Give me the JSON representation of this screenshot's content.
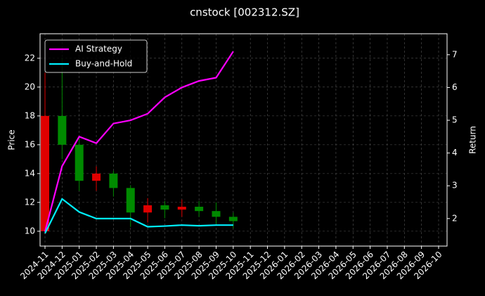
{
  "chart_data": {
    "type": "candlestick",
    "title": "cnstock [002312.SZ]",
    "ylabel": "Price",
    "y2label": "Return",
    "x": [
      "2024-11",
      "2024-12",
      "2025-01",
      "2025-02",
      "2025-03",
      "2025-04",
      "2025-05",
      "2025-06",
      "2025-07",
      "2025-08",
      "2025-09",
      "2025-10"
    ],
    "open": [
      10.0,
      18.0,
      16.0,
      13.5,
      14.0,
      13.0,
      11.3,
      11.8,
      11.5,
      11.7,
      11.4,
      11.0
    ],
    "high": [
      21.0,
      22.0,
      16.5,
      14.5,
      14.2,
      13.2,
      12.3,
      12.1,
      12.2,
      12.1,
      12.0,
      11.3
    ],
    "low": [
      9.8,
      15.0,
      12.8,
      12.8,
      12.4,
      10.3,
      10.6,
      10.9,
      11.0,
      11.0,
      10.5,
      10.2
    ],
    "close": [
      18.0,
      16.0,
      13.5,
      14.0,
      13.0,
      11.3,
      11.8,
      11.5,
      11.7,
      11.4,
      11.0,
      10.7
    ],
    "up_color": "#e00000",
    "down_color": "#008a00",
    "series": [
      {
        "name": "AI Strategy",
        "color": "#ff00ff",
        "axis": "y2",
        "values": [
          1.6,
          3.6,
          4.5,
          4.3,
          4.9,
          5.0,
          5.2,
          5.7,
          6.0,
          6.2,
          6.3,
          7.1
        ]
      },
      {
        "name": "Buy-and-Hold",
        "color": "#00f0ff",
        "axis": "y2",
        "values": [
          1.55,
          2.6,
          2.2,
          2.0,
          2.0,
          2.0,
          1.75,
          1.77,
          1.8,
          1.78,
          1.8,
          1.8
        ]
      }
    ],
    "xlim": [
      "2024-11",
      "2026-10"
    ],
    "xticks": [
      "2024-11",
      "2024-12",
      "2025-01",
      "2025-02",
      "2025-03",
      "2025-04",
      "2025-05",
      "2025-06",
      "2025-07",
      "2025-08",
      "2025-09",
      "2025-10",
      "2025-11",
      "2025-12",
      "2026-01",
      "2026-02",
      "2026-03",
      "2026-04",
      "2026-05",
      "2026-06",
      "2026-07",
      "2026-08",
      "2026-09",
      "2026-10"
    ],
    "ylim": [
      8.97,
      23.7
    ],
    "yticks": [
      10,
      12,
      14,
      16,
      18,
      20,
      22
    ],
    "y2lim": [
      1.16,
      7.64
    ],
    "y2ticks": [
      2,
      3,
      4,
      5,
      6,
      7
    ],
    "grid": true,
    "legend": "upper left"
  }
}
